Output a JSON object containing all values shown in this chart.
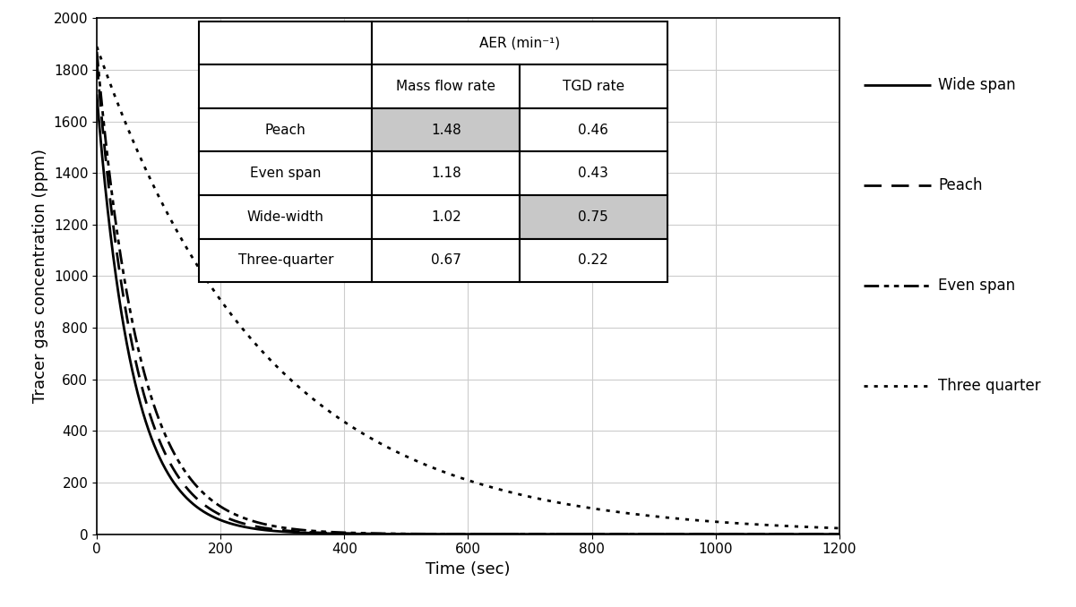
{
  "xlabel": "Time (sec)",
  "ylabel": "Tracer gas concentration (ppm)",
  "xlim": [
    0,
    1200
  ],
  "ylim": [
    0,
    2000
  ],
  "xticks": [
    0,
    200,
    400,
    600,
    800,
    1000,
    1200
  ],
  "yticks": [
    0,
    200,
    400,
    600,
    800,
    1000,
    1200,
    1400,
    1600,
    1800,
    2000
  ],
  "curves": [
    {
      "label": "Wide span",
      "C0": 1700,
      "k": 0.0172,
      "linestyle": "solid",
      "linewidth": 2.0,
      "color": "#000000"
    },
    {
      "label": "Peach",
      "C0": 1830,
      "k": 0.016,
      "linestyle": "dashed",
      "linewidth": 2.0,
      "color": "#000000"
    },
    {
      "label": "Even span",
      "C0": 1870,
      "k": 0.0143,
      "linestyle": "dashdot",
      "linewidth": 2.0,
      "color": "#000000"
    },
    {
      "label": "Three quarter",
      "C0": 1890,
      "k": 0.00367,
      "linestyle": "dotted",
      "linewidth": 2.0,
      "color": "#000000"
    }
  ],
  "table": {
    "highlight_color": "#c8c8c8",
    "border_color": "#000000",
    "fontsize": 11,
    "header1": "AER (min⁻¹)",
    "rows": [
      {
        "label": "Peach",
        "mass": "1.48",
        "tgd": "0.46",
        "highlight_mass": true,
        "highlight_tgd": false
      },
      {
        "label": "Even span",
        "mass": "1.18",
        "tgd": "0.43",
        "highlight_mass": false,
        "highlight_tgd": false
      },
      {
        "label": "Wide-width",
        "mass": "1.02",
        "tgd": "0.75",
        "highlight_mass": false,
        "highlight_tgd": true
      },
      {
        "label": "Three-quarter",
        "mass": "0.67",
        "tgd": "0.22",
        "highlight_mass": false,
        "highlight_tgd": false
      }
    ]
  },
  "legend_items": [
    {
      "label": "Wide span",
      "linestyle": "solid"
    },
    {
      "label": "Peach",
      "linestyle": "dashed"
    },
    {
      "label": "Even span",
      "linestyle": "dashdot"
    },
    {
      "label": "Three quarter",
      "linestyle": "dotted"
    }
  ],
  "background_color": "#ffffff",
  "grid_color": "#cccccc",
  "grid_linewidth": 0.8
}
